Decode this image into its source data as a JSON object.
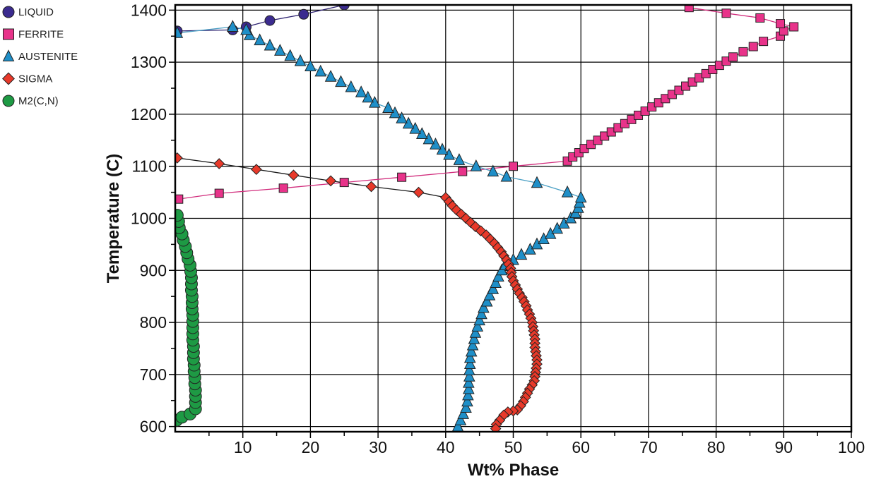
{
  "chart_data": {
    "type": "scatter",
    "title": "",
    "xlabel": "Wt% Phase",
    "ylabel": "Temperature (C)",
    "xlim": [
      0,
      100
    ],
    "ylim": [
      590,
      1410
    ],
    "x_ticks": [
      10,
      20,
      30,
      40,
      50,
      60,
      70,
      80,
      90,
      100
    ],
    "y_ticks": [
      600,
      700,
      800,
      900,
      1000,
      1100,
      1200,
      1300,
      1400
    ],
    "grid": true,
    "legend_position": "top-left, outside plot",
    "series": [
      {
        "name": "LIQUID",
        "marker": "circle",
        "color": "#3b2b8f",
        "line_color": "#2a1f6e",
        "points": [
          [
            0.3,
            1360
          ],
          [
            8.5,
            1362
          ],
          [
            10.5,
            1368
          ],
          [
            14,
            1380
          ],
          [
            19,
            1392
          ],
          [
            25,
            1410
          ]
        ]
      },
      {
        "name": "FERRITE",
        "marker": "square",
        "color": "#e8338a",
        "line_color": "#d12c7c",
        "points": [
          [
            0.5,
            1037
          ],
          [
            6.5,
            1048
          ],
          [
            16,
            1058
          ],
          [
            25,
            1069
          ],
          [
            33.5,
            1079
          ],
          [
            42.5,
            1090
          ],
          [
            50,
            1100
          ],
          [
            58,
            1110
          ],
          [
            58.8,
            1118
          ],
          [
            59.7,
            1126
          ],
          [
            60.5,
            1134
          ],
          [
            61.5,
            1142
          ],
          [
            62.5,
            1150
          ],
          [
            63.5,
            1158
          ],
          [
            64.5,
            1166
          ],
          [
            65.5,
            1174
          ],
          [
            66.5,
            1182
          ],
          [
            67.5,
            1190
          ],
          [
            68.5,
            1198
          ],
          [
            69.5,
            1206
          ],
          [
            70.5,
            1214
          ],
          [
            71.5,
            1222
          ],
          [
            72.5,
            1230
          ],
          [
            73.5,
            1238
          ],
          [
            74.5,
            1246
          ],
          [
            75.5,
            1254
          ],
          [
            76.5,
            1262
          ],
          [
            77.5,
            1270
          ],
          [
            78.5,
            1278
          ],
          [
            79.5,
            1286
          ],
          [
            80.5,
            1294
          ],
          [
            81.5,
            1302
          ],
          [
            82.5,
            1310
          ],
          [
            84,
            1320
          ],
          [
            85.5,
            1330
          ],
          [
            87,
            1340
          ],
          [
            89.5,
            1350
          ],
          [
            90,
            1360
          ],
          [
            91.5,
            1368
          ],
          [
            89.5,
            1374
          ],
          [
            86.5,
            1385
          ],
          [
            81.5,
            1394
          ],
          [
            76,
            1405
          ]
        ]
      },
      {
        "name": "AUSTENITE",
        "marker": "triangle",
        "color": "#1f8fc8",
        "line_color": "#4a9fc4",
        "points": [
          [
            41.8,
            590
          ],
          [
            41.8,
            600
          ],
          [
            42.2,
            612
          ],
          [
            42.6,
            624
          ],
          [
            43.0,
            636
          ],
          [
            43.2,
            648
          ],
          [
            43.3,
            660
          ],
          [
            43.4,
            672
          ],
          [
            43.4,
            684
          ],
          [
            43.5,
            696
          ],
          [
            43.5,
            708
          ],
          [
            43.6,
            720
          ],
          [
            43.6,
            732
          ],
          [
            43.8,
            744
          ],
          [
            44.0,
            756
          ],
          [
            44.2,
            768
          ],
          [
            44.4,
            780
          ],
          [
            44.7,
            792
          ],
          [
            45.0,
            804
          ],
          [
            45.3,
            816
          ],
          [
            45.6,
            828
          ],
          [
            46.1,
            840
          ],
          [
            46.5,
            852
          ],
          [
            47.0,
            864
          ],
          [
            47.4,
            876
          ],
          [
            47.8,
            888
          ],
          [
            48.3,
            900
          ],
          [
            48.8,
            910
          ],
          [
            50.0,
            920
          ],
          [
            51.2,
            930
          ],
          [
            52.5,
            940
          ],
          [
            53.5,
            950
          ],
          [
            54.5,
            960
          ],
          [
            55.5,
            970
          ],
          [
            56.5,
            980
          ],
          [
            57.5,
            990
          ],
          [
            58.5,
            1000
          ],
          [
            59.2,
            1010
          ],
          [
            59.6,
            1020
          ],
          [
            59.8,
            1030
          ],
          [
            60.0,
            1040
          ],
          [
            58.0,
            1050
          ],
          [
            53.5,
            1068
          ],
          [
            49.0,
            1080
          ],
          [
            47.0,
            1090
          ],
          [
            44.5,
            1100
          ],
          [
            42.0,
            1112
          ],
          [
            40.5,
            1122
          ],
          [
            39.5,
            1132
          ],
          [
            38.5,
            1142
          ],
          [
            37.5,
            1152
          ],
          [
            36.5,
            1162
          ],
          [
            35.5,
            1172
          ],
          [
            34.5,
            1182
          ],
          [
            33.5,
            1192
          ],
          [
            32.5,
            1202
          ],
          [
            31.5,
            1212
          ],
          [
            29.5,
            1222
          ],
          [
            28.5,
            1232
          ],
          [
            27.5,
            1242
          ],
          [
            26.0,
            1252
          ],
          [
            24.5,
            1262
          ],
          [
            23.0,
            1272
          ],
          [
            21.5,
            1282
          ],
          [
            20.0,
            1292
          ],
          [
            18.5,
            1302
          ],
          [
            17.0,
            1312
          ],
          [
            15.5,
            1322
          ],
          [
            14.0,
            1332
          ],
          [
            12.5,
            1342
          ],
          [
            11.0,
            1352
          ],
          [
            10.5,
            1362
          ],
          [
            8.5,
            1368
          ],
          [
            0.3,
            1356
          ]
        ]
      },
      {
        "name": "SIGMA",
        "marker": "diamond",
        "color": "#e8392a",
        "line_color": "#1a1a1a",
        "points": [
          [
            0.3,
            1116
          ],
          [
            6.5,
            1105
          ],
          [
            12,
            1094
          ],
          [
            17.5,
            1083
          ],
          [
            23,
            1072
          ],
          [
            29,
            1061
          ],
          [
            36,
            1050
          ],
          [
            40,
            1040
          ],
          [
            40.5,
            1032
          ],
          [
            41.0,
            1024
          ],
          [
            41.6,
            1016
          ],
          [
            42.3,
            1008
          ],
          [
            43.0,
            1000
          ],
          [
            43.7,
            992
          ],
          [
            44.4,
            984
          ],
          [
            45.2,
            976
          ],
          [
            46.0,
            968
          ],
          [
            46.6,
            960
          ],
          [
            47.2,
            952
          ],
          [
            47.7,
            944
          ],
          [
            48.2,
            936
          ],
          [
            48.6,
            928
          ],
          [
            49.0,
            920
          ],
          [
            49.3,
            912
          ],
          [
            49.6,
            904
          ],
          [
            49.7,
            896
          ],
          [
            49.8,
            888
          ],
          [
            50.0,
            880
          ],
          [
            50.3,
            872
          ],
          [
            50.6,
            864
          ],
          [
            50.9,
            856
          ],
          [
            51.3,
            848
          ],
          [
            51.6,
            840
          ],
          [
            51.9,
            832
          ],
          [
            52.1,
            824
          ],
          [
            52.4,
            816
          ],
          [
            52.6,
            808
          ],
          [
            52.8,
            800
          ],
          [
            52.9,
            792
          ],
          [
            53.0,
            784
          ],
          [
            53.1,
            776
          ],
          [
            53.2,
            768
          ],
          [
            53.2,
            760
          ],
          [
            53.2,
            752
          ],
          [
            53.3,
            744
          ],
          [
            53.4,
            736
          ],
          [
            53.5,
            728
          ],
          [
            53.5,
            720
          ],
          [
            53.4,
            712
          ],
          [
            53.3,
            704
          ],
          [
            53.2,
            696
          ],
          [
            53.1,
            688
          ],
          [
            52.8,
            680
          ],
          [
            52.4,
            672
          ],
          [
            52.1,
            664
          ],
          [
            51.8,
            656
          ],
          [
            51.5,
            648
          ],
          [
            51.1,
            640
          ],
          [
            50.6,
            632
          ],
          [
            50.0,
            630
          ],
          [
            49.2,
            628
          ],
          [
            48.6,
            622
          ],
          [
            48.0,
            612
          ],
          [
            47.5,
            604
          ],
          [
            47.4,
            596
          ]
        ]
      },
      {
        "name": "M2(C,N)",
        "marker": "circle",
        "color": "#1e9a44",
        "line_color": "#1e9a44",
        "points": [
          [
            0.2,
            612
          ],
          [
            1.0,
            618
          ],
          [
            2.2,
            624
          ],
          [
            3.0,
            634
          ],
          [
            3.0,
            646
          ],
          [
            3.0,
            658
          ],
          [
            3.0,
            670
          ],
          [
            2.9,
            682
          ],
          [
            2.9,
            694
          ],
          [
            2.8,
            706
          ],
          [
            2.8,
            718
          ],
          [
            2.7,
            730
          ],
          [
            2.7,
            742
          ],
          [
            2.7,
            754
          ],
          [
            2.6,
            766
          ],
          [
            2.6,
            778
          ],
          [
            2.6,
            790
          ],
          [
            2.6,
            802
          ],
          [
            2.6,
            814
          ],
          [
            2.5,
            826
          ],
          [
            2.5,
            838
          ],
          [
            2.5,
            850
          ],
          [
            2.4,
            862
          ],
          [
            2.4,
            874
          ],
          [
            2.4,
            886
          ],
          [
            2.3,
            898
          ],
          [
            2.2,
            910
          ],
          [
            1.9,
            922
          ],
          [
            1.7,
            934
          ],
          [
            1.5,
            946
          ],
          [
            1.2,
            958
          ],
          [
            1.0,
            970
          ],
          [
            0.6,
            982
          ],
          [
            0.5,
            994
          ],
          [
            0.3,
            1006
          ]
        ]
      }
    ]
  }
}
